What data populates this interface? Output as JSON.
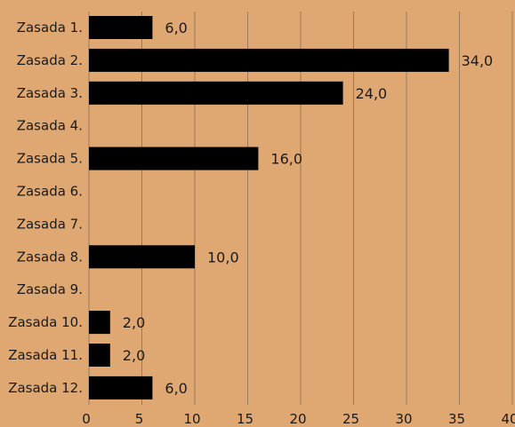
{
  "colors": {
    "background": "#dfa873",
    "bar": "#000000",
    "grid": "#9a7a5a",
    "text": "#1a1a1a"
  },
  "chart_data": {
    "type": "bar",
    "orientation": "horizontal",
    "categories": [
      "Zasada 1.",
      "Zasada 2.",
      "Zasada 3.",
      "Zasada 4.",
      "Zasada 5.",
      "Zasada 6.",
      "Zasada 7.",
      "Zasada 8.",
      "Zasada 9.",
      "Zasada 10.",
      "Zasada 11.",
      "Zasada 12."
    ],
    "values": [
      6,
      34,
      24,
      0,
      16,
      0,
      0,
      10,
      0,
      2,
      2,
      6
    ],
    "data_labels": [
      "6,0",
      "34,0",
      "24,0",
      "",
      "16,0",
      "",
      "",
      "10,0",
      "",
      "2,0",
      "2,0",
      "6,0"
    ],
    "xlim": [
      0,
      40
    ],
    "x_ticks": [
      0,
      5,
      10,
      15,
      20,
      25,
      30,
      35,
      40
    ],
    "x_tick_labels": [
      "0",
      "5",
      "10",
      "15",
      "20",
      "25",
      "30",
      "35",
      "40"
    ],
    "grid": true,
    "title": "",
    "xlabel": "",
    "ylabel": ""
  }
}
